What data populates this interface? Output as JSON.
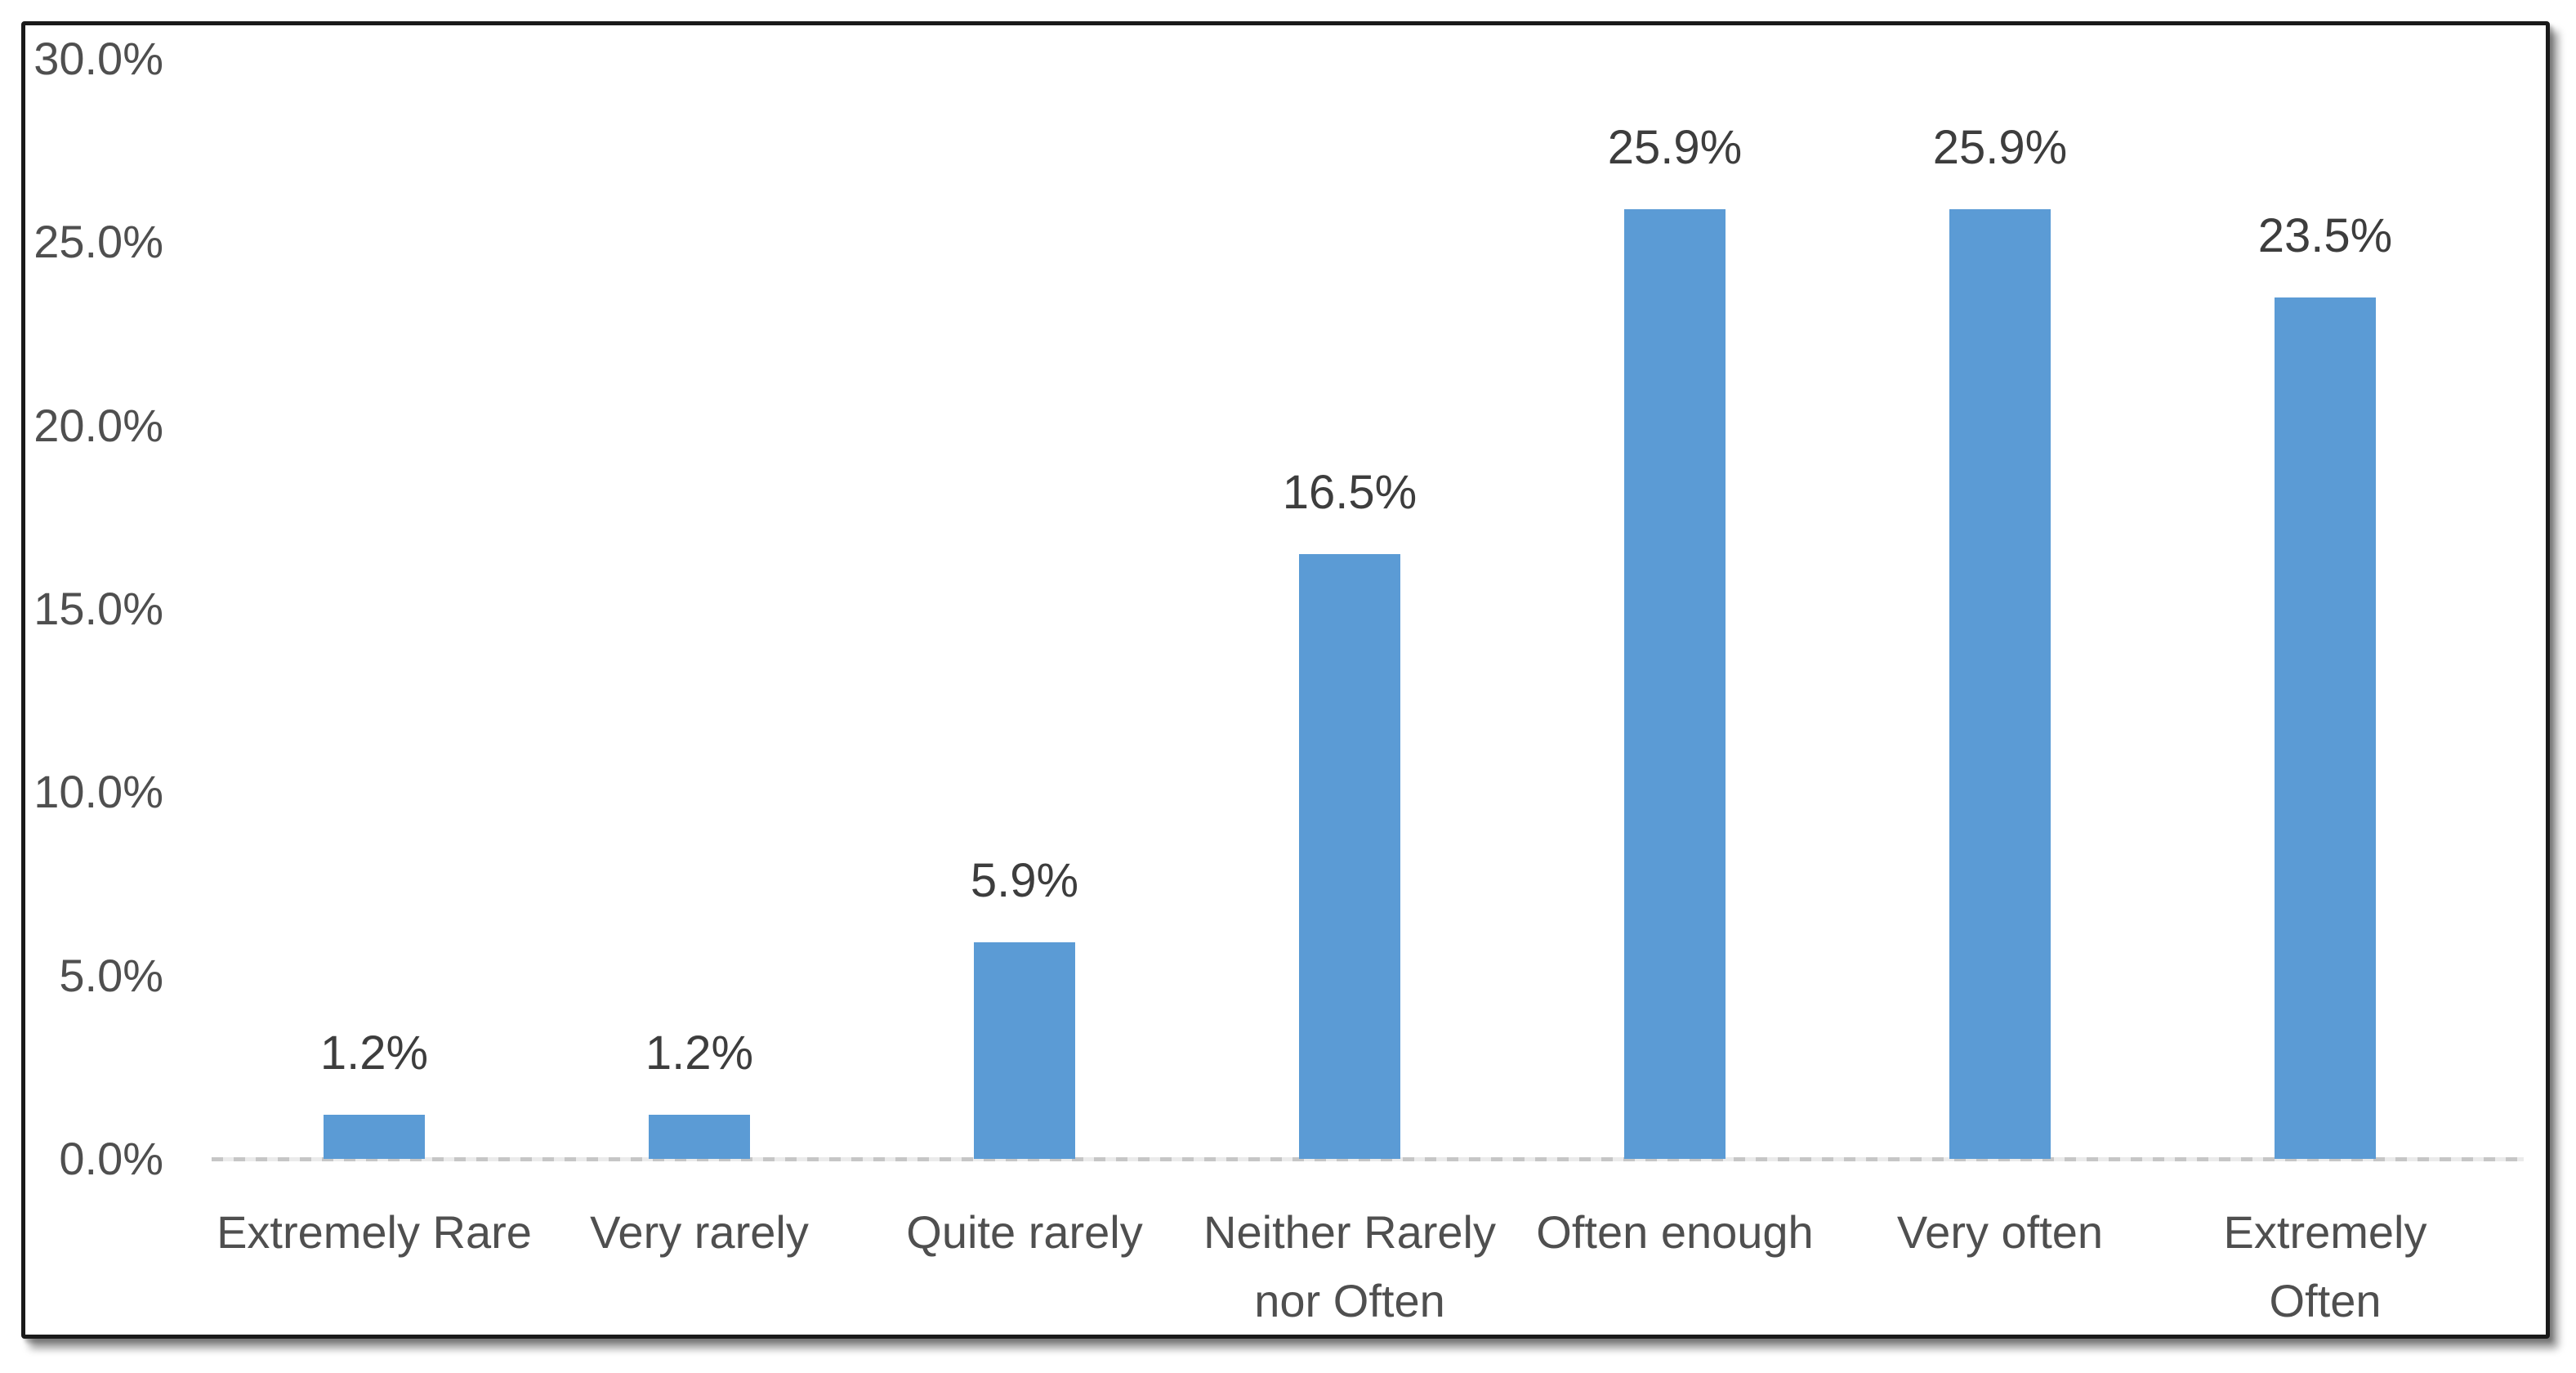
{
  "chart_data": {
    "type": "bar",
    "title": "",
    "xlabel": "",
    "ylabel": "",
    "ylim": [
      0,
      30
    ],
    "grid": false,
    "legend": "none",
    "categories": [
      "Extremely Rare",
      "Very rarely",
      "Quite rarely",
      "Neither Rarely\nnor Often",
      "Often enough",
      "Very often",
      "Extremely\nOften"
    ],
    "values": [
      1.2,
      1.2,
      5.9,
      16.5,
      25.9,
      25.9,
      23.5
    ],
    "value_labels": [
      "1.2%",
      "1.2%",
      "5.9%",
      "16.5%",
      "25.9%",
      "25.9%",
      "23.5%"
    ],
    "y_ticks": [
      {
        "value": 30,
        "label": "30.0%"
      },
      {
        "value": 25,
        "label": "25.0%"
      },
      {
        "value": 20,
        "label": "20.0%"
      },
      {
        "value": 15,
        "label": "15.0%"
      },
      {
        "value": 10,
        "label": "10.0%"
      },
      {
        "value": 5,
        "label": "5.0%"
      },
      {
        "value": 0,
        "label": "0.0%"
      }
    ],
    "colors": {
      "bar": "#5B9BD5",
      "axis_text": "#4f4f4f",
      "data_label_text": "#3d3d3d",
      "baseline": "#c9c9c9",
      "frame_border": "#1a1a1a",
      "background": "#ffffff"
    }
  }
}
